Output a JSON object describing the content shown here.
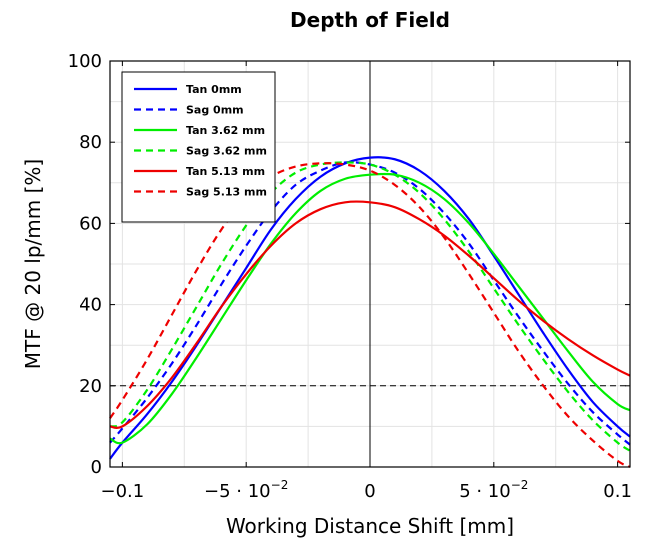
{
  "chart_data": {
    "type": "line",
    "title": "Depth of Field",
    "xlabel": "Working Distance Shift [mm]",
    "ylabel": "MTF @ 20 lp/mm [%]",
    "xlim": [
      -0.105,
      0.105
    ],
    "ylim": [
      0,
      100
    ],
    "xticks": [
      -0.1,
      -0.05,
      0,
      0.05,
      0.1
    ],
    "xtick_labels": [
      "−0.1",
      "−5 · 10",
      "0",
      "5 · 10",
      "0.1"
    ],
    "xtick_exponents": [
      "",
      "−2",
      "",
      "−2",
      ""
    ],
    "yticks": [
      0,
      20,
      40,
      60,
      80,
      100
    ],
    "ytick_labels": [
      "0",
      "20",
      "40",
      "60",
      "80",
      "100"
    ],
    "grid": true,
    "legend_position": "top-left",
    "reference_lines": {
      "horizontal_y": 20,
      "horizontal_style": "dashed",
      "vertical_x": 0
    },
    "x": [
      -0.105,
      -0.1,
      -0.09,
      -0.08,
      -0.07,
      -0.06,
      -0.05,
      -0.04,
      -0.03,
      -0.02,
      -0.01,
      0,
      0.01,
      0.02,
      0.03,
      0.04,
      0.05,
      0.06,
      0.07,
      0.08,
      0.09,
      0.1,
      0.105
    ],
    "series": [
      {
        "name": "Tan 0mm",
        "color": "#0000ff",
        "dash": "solid",
        "values": [
          2,
          6,
          13,
          21,
          30,
          39.5,
          49,
          58.5,
          66,
          71.5,
          74.8,
          76.2,
          75.8,
          73,
          68,
          61,
          52,
          42.5,
          33,
          24,
          16,
          10,
          7.5
        ]
      },
      {
        "name": "Sag 0mm",
        "color": "#0000ff",
        "dash": "dashed",
        "values": [
          6,
          9.5,
          17,
          25.5,
          35,
          45,
          54.5,
          63,
          69.5,
          73,
          75,
          74.5,
          72.5,
          68.5,
          62.5,
          55,
          46,
          37,
          28.5,
          20.5,
          13.5,
          8,
          5.5
        ]
      },
      {
        "name": "Tan 3.62 mm",
        "color": "#00ee00",
        "dash": "solid",
        "values": [
          7,
          6,
          10.5,
          18,
          27,
          36.5,
          46,
          55,
          62.5,
          68,
          71,
          72,
          72,
          70,
          66,
          60,
          52.5,
          44.5,
          36.5,
          28.5,
          21,
          15.5,
          14
        ]
      },
      {
        "name": "Sag 3.62 mm",
        "color": "#00ee00",
        "dash": "dashed",
        "values": [
          10,
          11,
          19,
          29,
          39.5,
          50,
          59.5,
          67.5,
          72.5,
          74.5,
          75,
          74.5,
          72,
          67.5,
          61,
          53,
          44,
          35,
          26.5,
          18.5,
          11.5,
          6,
          4
        ]
      },
      {
        "name": "Tan 5.13 mm",
        "color": "#ee0000",
        "dash": "solid",
        "values": [
          10,
          10,
          15,
          22,
          30.5,
          39.5,
          47.5,
          54.5,
          60,
          63.5,
          65.2,
          65.2,
          64,
          61,
          57,
          52,
          46.5,
          41,
          36,
          31.5,
          27.5,
          24,
          22.5
        ]
      },
      {
        "name": "Sag 5.13 mm",
        "color": "#ee0000",
        "dash": "dashed",
        "values": [
          12,
          16.5,
          26.5,
          37.5,
          48.5,
          58.5,
          66.5,
          71.5,
          74,
          74.8,
          74.5,
          73,
          69.5,
          64,
          56.5,
          47.5,
          38,
          28.5,
          20,
          12.5,
          6.5,
          1.5,
          0
        ]
      }
    ]
  }
}
